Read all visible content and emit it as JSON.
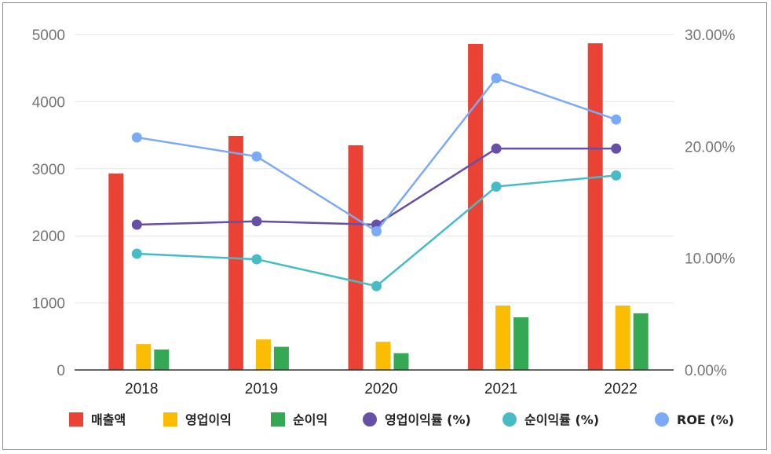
{
  "chart_data": {
    "type": "bar",
    "categories": [
      "2018",
      "2019",
      "2020",
      "2021",
      "2022"
    ],
    "series": [
      {
        "name": "매출액",
        "kind": "bar",
        "axis": "left",
        "color": "#ea4335",
        "values": [
          2930,
          3490,
          3350,
          4860,
          4870
        ]
      },
      {
        "name": "영업이익",
        "kind": "bar",
        "axis": "left",
        "color": "#fbbc04",
        "values": [
          385,
          455,
          420,
          960,
          960
        ]
      },
      {
        "name": "순이익",
        "kind": "bar",
        "axis": "left",
        "color": "#34a853",
        "values": [
          305,
          345,
          250,
          785,
          845
        ]
      },
      {
        "name": "영업이익률 (%)",
        "kind": "line",
        "axis": "right",
        "color": "#674ea7",
        "values": [
          13.0,
          13.3,
          13.0,
          19.8,
          19.8
        ]
      },
      {
        "name": "순이익률 (%)",
        "kind": "line",
        "axis": "right",
        "color": "#46bdc6",
        "values": [
          10.4,
          9.9,
          7.5,
          16.4,
          17.4
        ]
      },
      {
        "name": "ROE (%)",
        "kind": "line",
        "axis": "right",
        "color": "#7baaf7",
        "values": [
          20.8,
          19.1,
          12.4,
          26.1,
          22.4
        ]
      }
    ],
    "y_left": {
      "ticks": [
        "0",
        "1000",
        "2000",
        "3000",
        "4000",
        "5000"
      ],
      "min": 0,
      "max": 5000
    },
    "y_right": {
      "ticks": [
        "0.00%",
        "10.00%",
        "20.00%",
        "30.00%"
      ],
      "min": 0,
      "max": 30
    },
    "grid": true,
    "legend_position": "bottom",
    "title": "",
    "xlabel": "",
    "ylabel": ""
  }
}
